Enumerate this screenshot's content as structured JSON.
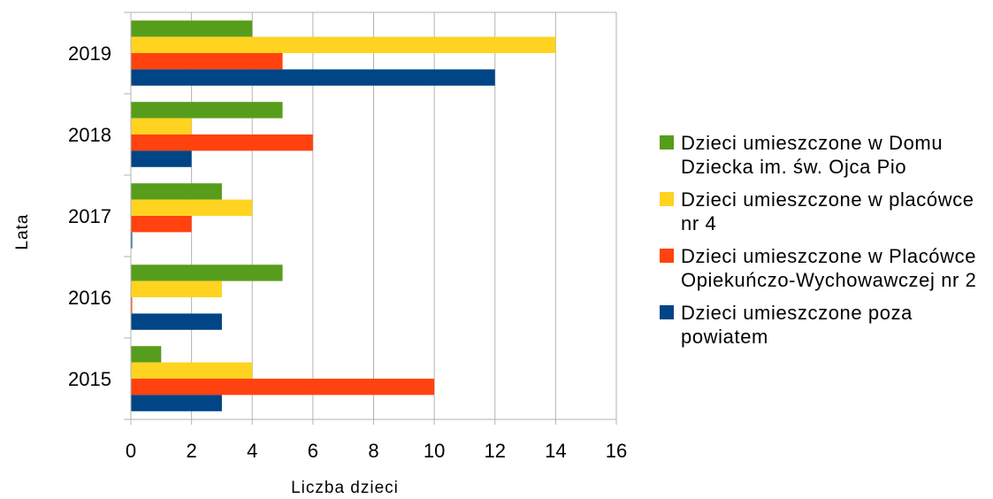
{
  "chart_data": {
    "type": "bar",
    "orientation": "horizontal",
    "categories": [
      "2015",
      "2016",
      "2017",
      "2018",
      "2019"
    ],
    "series": [
      {
        "name": "Dzieci umieszczone w Domu Dziecka im. św. Ojca Pio",
        "color": "#579d1c",
        "values": [
          1,
          5,
          3,
          5,
          4
        ]
      },
      {
        "name": "Dzieci umieszczone w placówce nr 4",
        "color": "#ffd320",
        "values": [
          4,
          3,
          4,
          2,
          14
        ]
      },
      {
        "name": "Dzieci umieszczone w Placówce Opiekuńczo-Wychowawczej nr 2",
        "color": "#ff420e",
        "values": [
          10,
          0,
          2,
          6,
          5
        ]
      },
      {
        "name": "Dzieci umieszczone poza powiatem",
        "color": "#004586",
        "values": [
          3,
          3,
          0,
          2,
          12
        ]
      }
    ],
    "xlabel": "Liczba dzieci",
    "ylabel": "Lata",
    "xlim": [
      0,
      16
    ],
    "xticks": [
      0,
      2,
      4,
      6,
      8,
      10,
      12,
      14,
      16
    ],
    "grid": true,
    "legend_position": "right"
  }
}
